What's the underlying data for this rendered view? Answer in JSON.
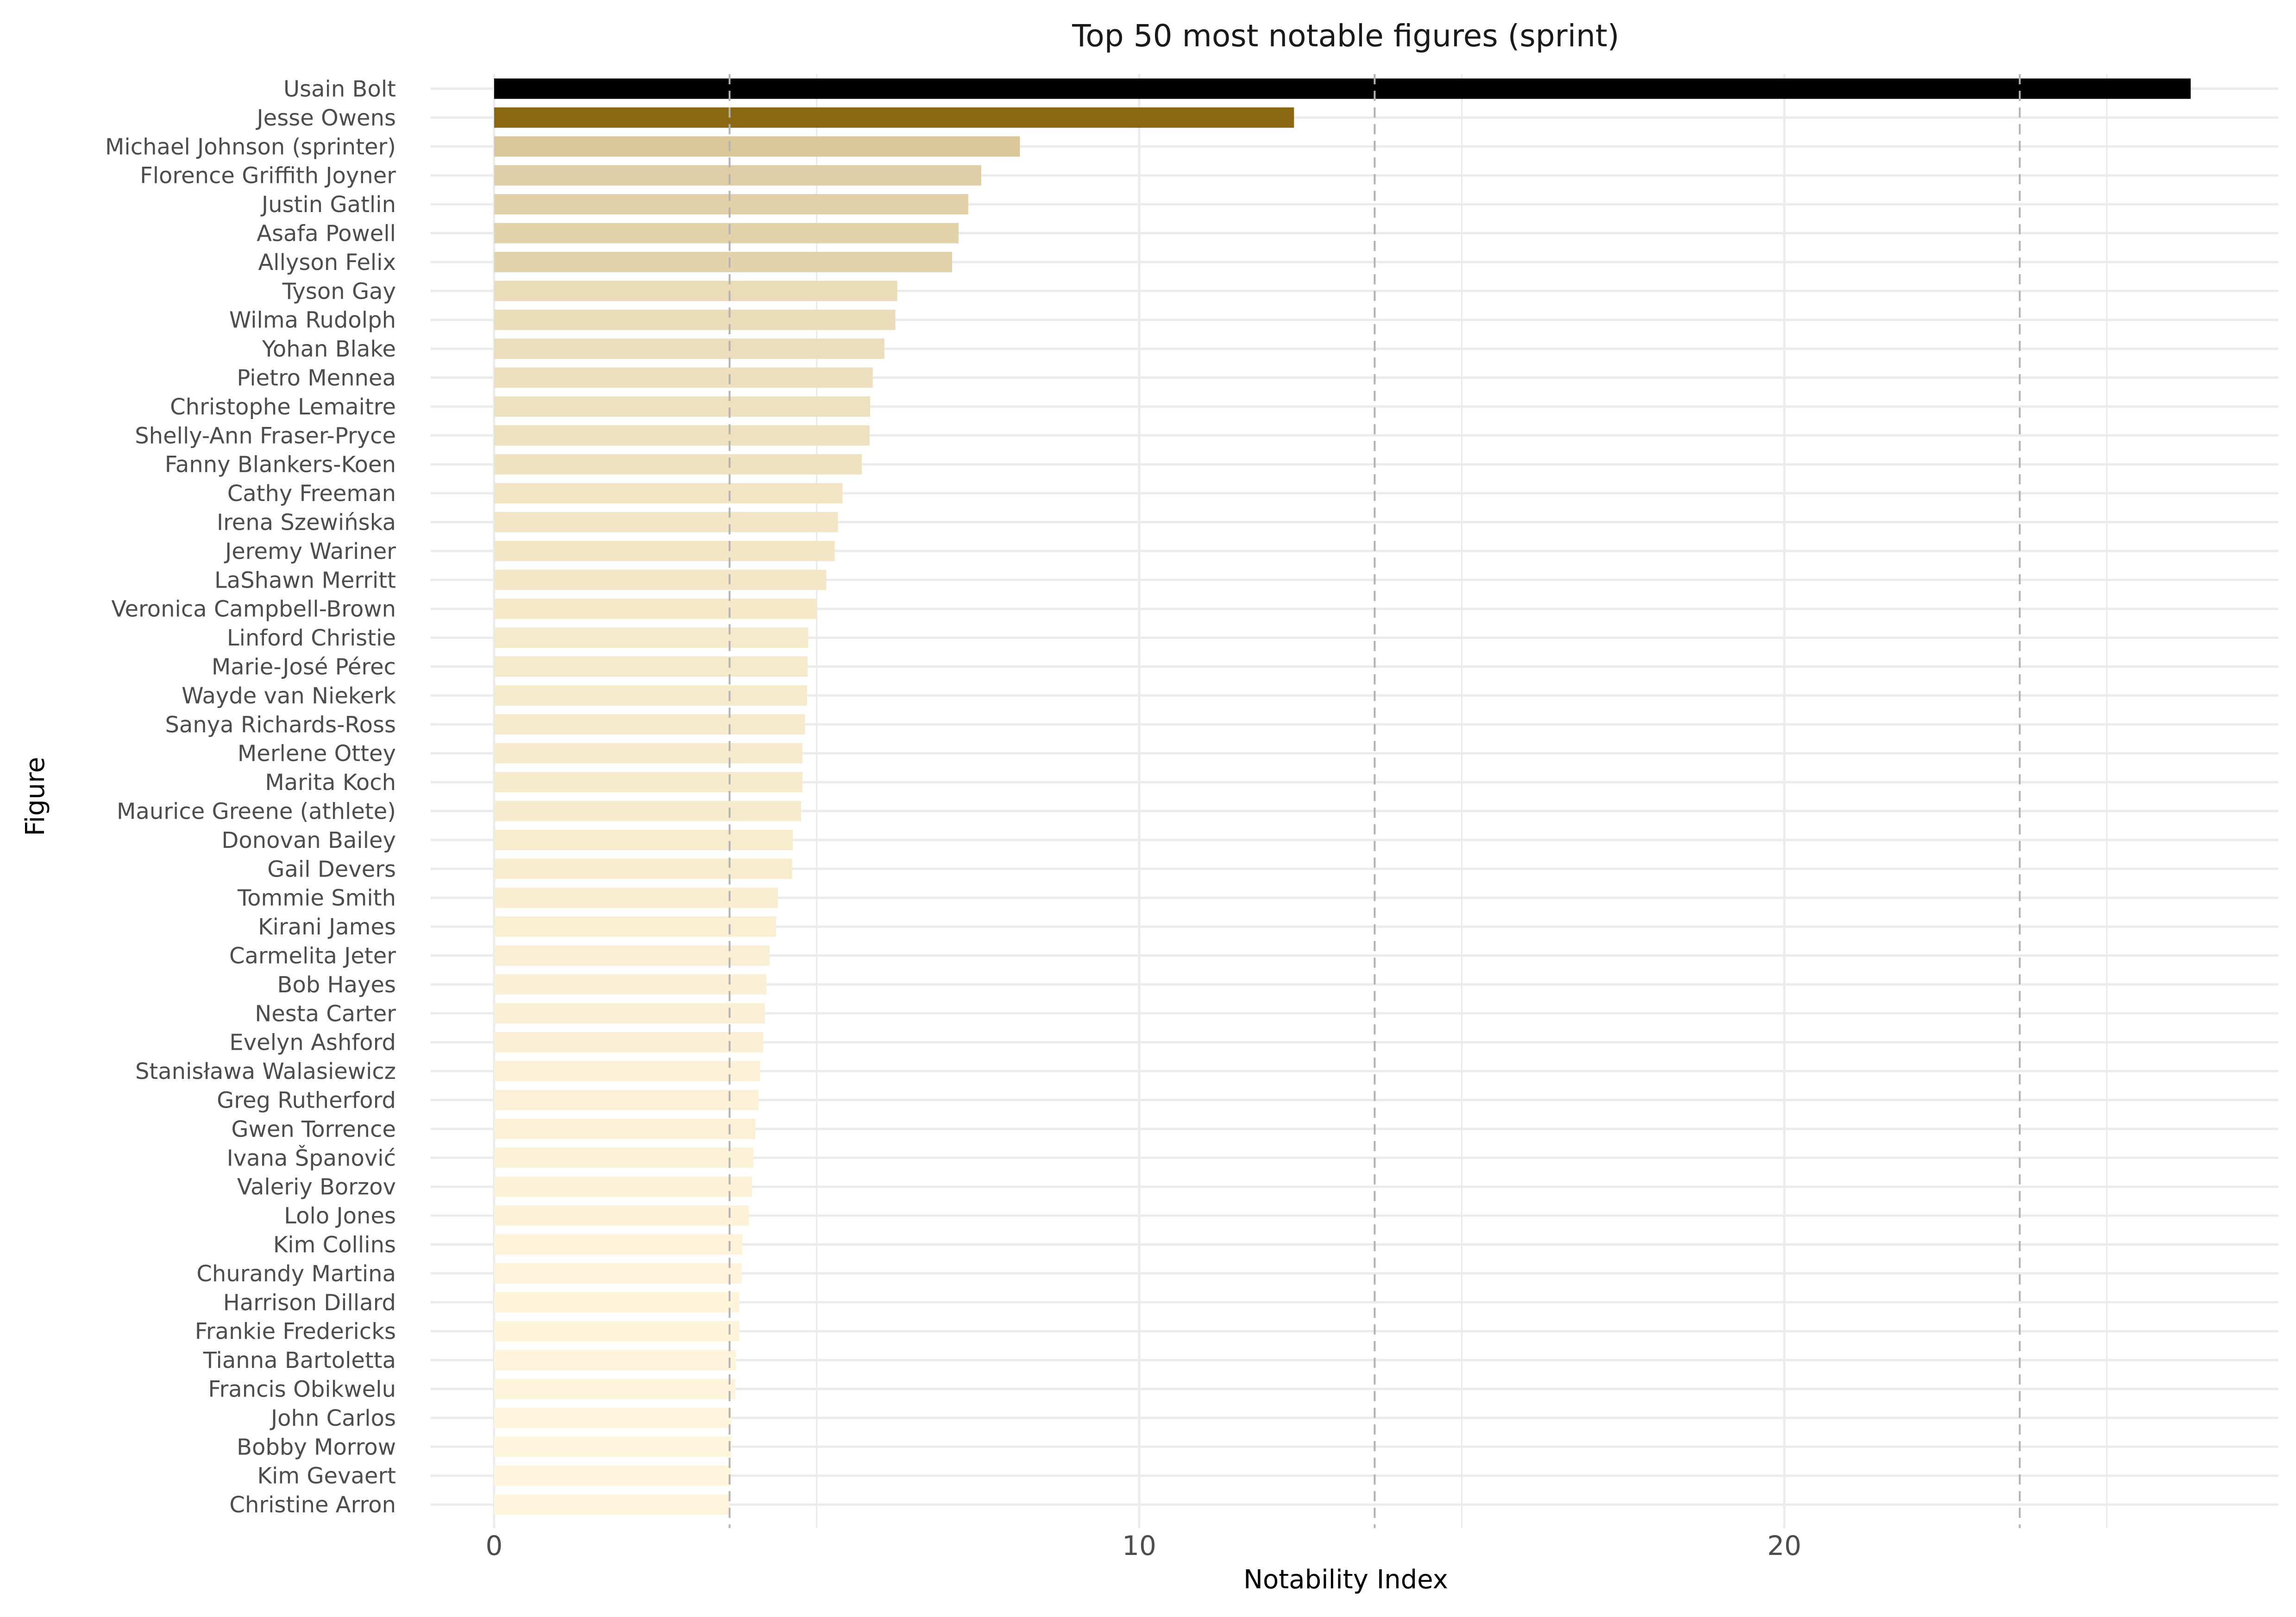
{
  "chart_data": {
    "type": "bar",
    "orientation": "horizontal",
    "title": "Top 50 most notable figures (sprint)",
    "xlabel": "Notability Index",
    "ylabel": "Figure",
    "xlim": [
      0,
      27.6
    ],
    "xticks": [
      0,
      10,
      20
    ],
    "grid": true,
    "reference_lines": [
      3.65,
      13.65,
      23.65
    ],
    "colors": {
      "max": "#000000",
      "high": "#8B6914",
      "low": "#FFF5DC",
      "grid": "#EBEBEB",
      "reference_line": "#B3B3B3"
    },
    "categories": [
      "Usain Bolt",
      "Jesse Owens",
      "Michael Johnson (sprinter)",
      "Florence Griffith Joyner",
      "Justin Gatlin",
      "Asafa Powell",
      "Allyson Felix",
      "Tyson Gay",
      "Wilma Rudolph",
      "Yohan Blake",
      "Pietro Mennea",
      "Christophe Lemaitre",
      "Shelly-Ann Fraser-Pryce",
      "Fanny Blankers-Koen",
      "Cathy Freeman",
      "Irena Szewińska",
      "Jeremy Wariner",
      "LaShawn Merritt",
      "Veronica Campbell-Brown",
      "Linford Christie",
      "Marie-José Pérec",
      "Wayde van Niekerk",
      "Sanya Richards-Ross",
      "Merlene Ottey",
      "Marita Koch",
      "Maurice Greene (athlete)",
      "Donovan Bailey",
      "Gail Devers",
      "Tommie Smith",
      "Kirani James",
      "Carmelita Jeter",
      "Bob Hayes",
      "Nesta Carter",
      "Evelyn Ashford",
      "Stanisława Walasiewicz",
      "Greg Rutherford",
      "Gwen Torrence",
      "Ivana Španović",
      "Valeriy Borzov",
      "Lolo Jones",
      "Kim Collins",
      "Churandy Martina",
      "Harrison Dillard",
      "Frankie Fredericks",
      "Tianna Bartoletta",
      "Francis Obikwelu",
      "John Carlos",
      "Bobby Morrow",
      "Kim Gevaert",
      "Christine Arron"
    ],
    "values": [
      26.3,
      12.4,
      8.15,
      7.55,
      7.35,
      7.2,
      7.1,
      6.25,
      6.22,
      6.05,
      5.87,
      5.83,
      5.82,
      5.7,
      5.4,
      5.33,
      5.28,
      5.15,
      5.0,
      4.87,
      4.86,
      4.85,
      4.82,
      4.78,
      4.78,
      4.76,
      4.63,
      4.62,
      4.4,
      4.37,
      4.27,
      4.22,
      4.2,
      4.17,
      4.12,
      4.1,
      4.05,
      4.02,
      4.0,
      3.95,
      3.85,
      3.84,
      3.8,
      3.8,
      3.75,
      3.74,
      3.68,
      3.68,
      3.67,
      3.65
    ]
  }
}
